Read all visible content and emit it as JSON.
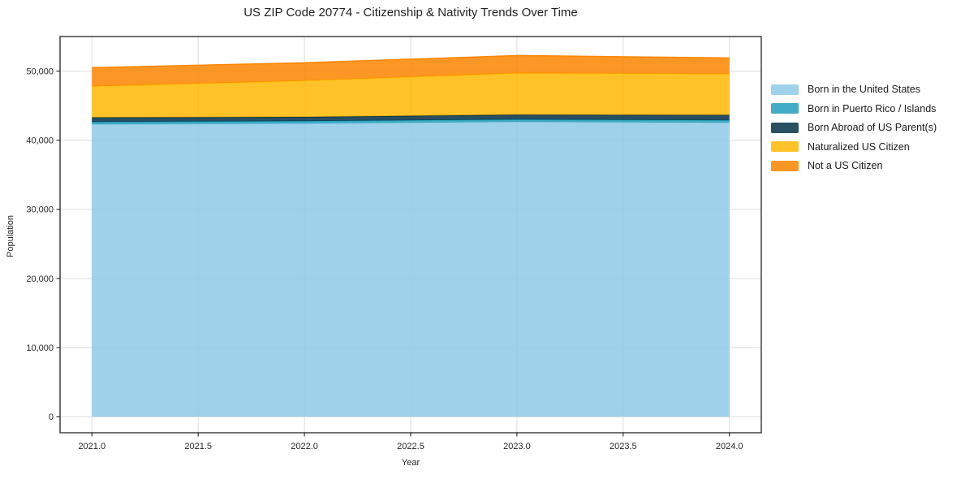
{
  "chart_data": {
    "type": "area",
    "stacked": true,
    "title": "US ZIP Code 20774 - Citizenship & Nativity Trends Over Time",
    "xlabel": "Year",
    "ylabel": "Population",
    "x": [
      2021,
      2022,
      2023,
      2024
    ],
    "series": [
      {
        "name": "Born in the United States",
        "color": "#8ecae6",
        "values": [
          42300,
          42420,
          42650,
          42540
        ]
      },
      {
        "name": "Born in Puerto Rico / Islands",
        "color": "#219ebc",
        "values": [
          350,
          350,
          350,
          350
        ]
      },
      {
        "name": "Born Abroad of US Parent(s)",
        "color": "#023047",
        "values": [
          650,
          600,
          700,
          760
        ]
      },
      {
        "name": "Naturalized US Citizen",
        "color": "#ffb703",
        "values": [
          4500,
          5250,
          6000,
          5950
        ]
      },
      {
        "name": "Not a US Citizen",
        "color": "#fb8500",
        "values": [
          2700,
          2580,
          2550,
          2300
        ]
      }
    ],
    "totals": [
      50500,
      51200,
      52250,
      51900
    ],
    "fill_alpha": 0.85,
    "xlim": [
      2020.85,
      2024.15
    ],
    "ylim": [
      -2300,
      55000
    ],
    "xtick_values": [
      2021,
      2021.5,
      2022,
      2022.5,
      2023,
      2023.5,
      2024
    ],
    "xtick_labels": [
      "2021.0",
      "2021.5",
      "2022.0",
      "2022.5",
      "2023.0",
      "2023.5",
      "2024.0"
    ],
    "ytick_values": [
      0,
      10000,
      20000,
      30000,
      40000,
      50000
    ],
    "ytick_labels": [
      "0",
      "10,000",
      "20,000",
      "30,000",
      "40,000",
      "50,000"
    ],
    "grid": true,
    "legend_position": "right-outside"
  }
}
